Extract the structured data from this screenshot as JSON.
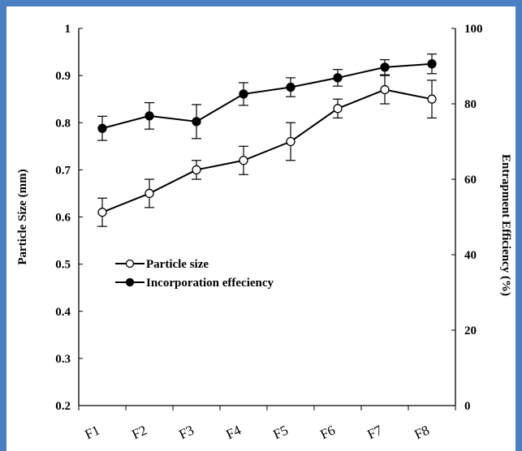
{
  "chart_data": {
    "type": "line",
    "categories": [
      "F1",
      "F2",
      "F3",
      "F4",
      "F5",
      "F6",
      "F7",
      "F8"
    ],
    "y_left": {
      "label": "Particle Size (mm)",
      "range": [
        0.2,
        1.0
      ],
      "ticks": [
        "0.2",
        "0.3",
        "0.4",
        "0.5",
        "0.6",
        "0.7",
        "0.8",
        "0.9",
        "1"
      ]
    },
    "y_right": {
      "label": "Entrapment Efficiency (%)",
      "range": [
        0,
        100
      ],
      "ticks": [
        "0",
        "20",
        "40",
        "60",
        "80",
        "100"
      ]
    },
    "series": [
      {
        "name": "Particle size",
        "axis": "left",
        "marker": "open-circle",
        "values": [
          0.61,
          0.65,
          0.7,
          0.72,
          0.76,
          0.83,
          0.87,
          0.85
        ],
        "errors": [
          0.03,
          0.03,
          0.02,
          0.03,
          0.04,
          0.02,
          0.03,
          0.04
        ]
      },
      {
        "name": "Incorporation effeciency",
        "axis": "right",
        "marker": "filled-circle",
        "values": [
          73.5,
          76.8,
          75.3,
          82.6,
          84.4,
          86.9,
          89.7,
          90.6
        ],
        "errors": [
          3.2,
          3.5,
          4.5,
          3.0,
          2.5,
          2.2,
          2.0,
          2.6
        ]
      }
    ],
    "legend_position": "bottom-left",
    "grid": false
  }
}
